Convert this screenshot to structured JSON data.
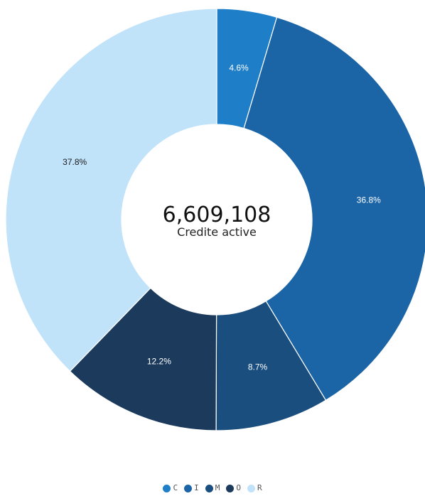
{
  "chart_data": {
    "type": "pie",
    "donut": true,
    "center": {
      "value": "6,609,108",
      "label": "Credite active"
    },
    "categories": [
      "C",
      "I",
      "M",
      "O",
      "R"
    ],
    "values": [
      4.6,
      36.8,
      8.7,
      12.2,
      37.8
    ],
    "labels": [
      "4.6%",
      "36.8%",
      "8.7%",
      "12.2%",
      "37.8%"
    ],
    "colors": [
      "#1f7ec8",
      "#1b64a6",
      "#1a4e7e",
      "#1b3a5c",
      "#c1e3fa"
    ],
    "label_colors": [
      "#ffffff",
      "#ffffff",
      "#ffffff",
      "#ffffff",
      "#1a1a1a"
    ],
    "legend": {
      "position": "bottom",
      "items": [
        {
          "label": "C",
          "color": "#1f7ec8"
        },
        {
          "label": "I",
          "color": "#1b64a6"
        },
        {
          "label": "M",
          "color": "#1a4e7e"
        },
        {
          "label": "O",
          "color": "#1b3a5c"
        },
        {
          "label": "R",
          "color": "#c1e3fa"
        }
      ]
    }
  }
}
